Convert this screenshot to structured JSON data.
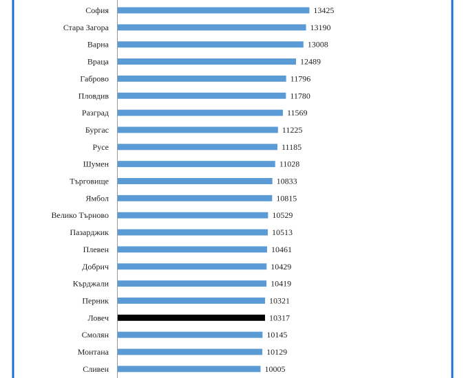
{
  "chart_data": {
    "type": "bar",
    "orientation": "horizontal",
    "categories": [
      "София",
      "Стара Загора",
      "Варна",
      "Враца",
      "Габрово",
      "Пловдив",
      "Разград",
      "Бургас",
      "Русе",
      "Шумен",
      "Търговище",
      "Ямбол",
      "Велико Търново",
      "Пазарджик",
      "Плевен",
      "Добрич",
      "Кърджали",
      "Перник",
      "Ловеч",
      "Смолян",
      "Монтана",
      "Сливен"
    ],
    "values": [
      13425,
      13190,
      13008,
      12489,
      11796,
      11780,
      11569,
      11225,
      11185,
      11028,
      10833,
      10815,
      10529,
      10513,
      10461,
      10429,
      10419,
      10321,
      10317,
      10145,
      10129,
      10005
    ],
    "highlight_category": "Ловеч",
    "colors": {
      "bar": "#5b9bd5",
      "highlight": "#000000",
      "frame": "#1f6fd1",
      "axis": "#999999"
    },
    "xlim": [
      0,
      20000
    ],
    "title": "",
    "xlabel": "",
    "ylabel": "",
    "grid": false,
    "legend": "none"
  }
}
